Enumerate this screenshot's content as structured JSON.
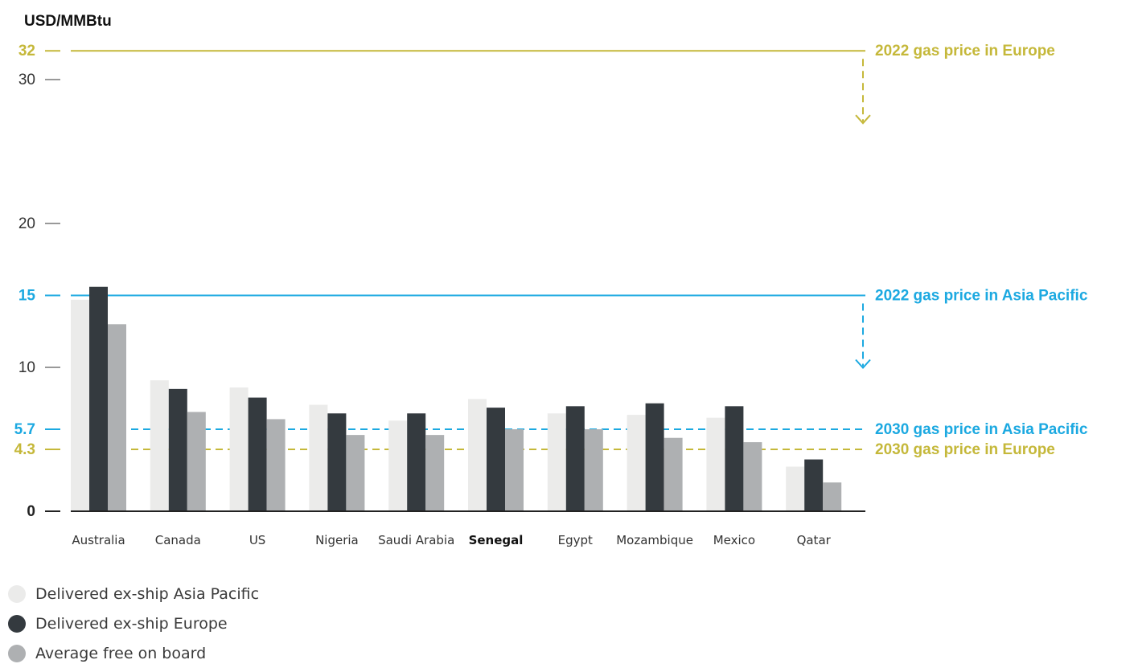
{
  "chart_data": {
    "type": "bar",
    "ylabel": "USD/MMBtu",
    "ylim": [
      0,
      32
    ],
    "yticks": [
      {
        "value": 0,
        "label": "0",
        "emphasis": true,
        "color": "#222222"
      },
      {
        "value": 4.3,
        "label": "4.3",
        "emphasis": true,
        "color": "#c5b83a"
      },
      {
        "value": 5.7,
        "label": "5.7",
        "emphasis": true,
        "color": "#1ca9e1"
      },
      {
        "value": 10,
        "label": "10",
        "emphasis": false,
        "color": "#333333"
      },
      {
        "value": 15,
        "label": "15",
        "emphasis": true,
        "color": "#1ca9e1"
      },
      {
        "value": 20,
        "label": "20",
        "emphasis": false,
        "color": "#333333"
      },
      {
        "value": 30,
        "label": "30",
        "emphasis": false,
        "color": "#333333"
      },
      {
        "value": 32,
        "label": "32",
        "emphasis": true,
        "color": "#c5b83a"
      }
    ],
    "categories": [
      "Australia",
      "Canada",
      "US",
      "Nigeria",
      "Saudi Arabia",
      "Senegal",
      "Egypt",
      "Mozambique",
      "Mexico",
      "Qatar"
    ],
    "highlight_category": "Senegal",
    "series": [
      {
        "name": "Delivered ex-ship Asia Pacific",
        "color": "#ebebea",
        "values": [
          14.7,
          9.1,
          8.6,
          7.4,
          6.3,
          7.8,
          6.8,
          6.7,
          6.5,
          3.1
        ]
      },
      {
        "name": "Delivered ex-ship Europe",
        "color": "#343a3f",
        "values": [
          15.6,
          8.5,
          7.9,
          6.8,
          6.8,
          7.2,
          7.3,
          7.5,
          7.3,
          3.6
        ]
      },
      {
        "name": "Average free on board",
        "color": "#aeb0b2",
        "values": [
          13.0,
          6.9,
          6.4,
          5.3,
          5.3,
          5.7,
          5.7,
          5.1,
          4.8,
          2.0
        ]
      }
    ],
    "reference_lines": [
      {
        "value": 32,
        "label": "2022 gas price in Europe",
        "style": "solid",
        "color": "#c5b83a",
        "arrow_down": true
      },
      {
        "value": 15,
        "label": "2022 gas price in Asia Pacific",
        "style": "solid",
        "color": "#1ca9e1",
        "arrow_down": true
      },
      {
        "value": 5.7,
        "label": "2030 gas price in Asia Pacific",
        "style": "dashed",
        "color": "#1ca9e1",
        "arrow_down": false
      },
      {
        "value": 4.3,
        "label": "2030 gas price in Europe",
        "style": "dashed",
        "color": "#c5b83a",
        "arrow_down": false
      }
    ],
    "legend": [
      "Delivered ex-ship Asia Pacific",
      "Delivered ex-ship Europe",
      "Average free on board"
    ],
    "legend_position": "bottom-left"
  }
}
